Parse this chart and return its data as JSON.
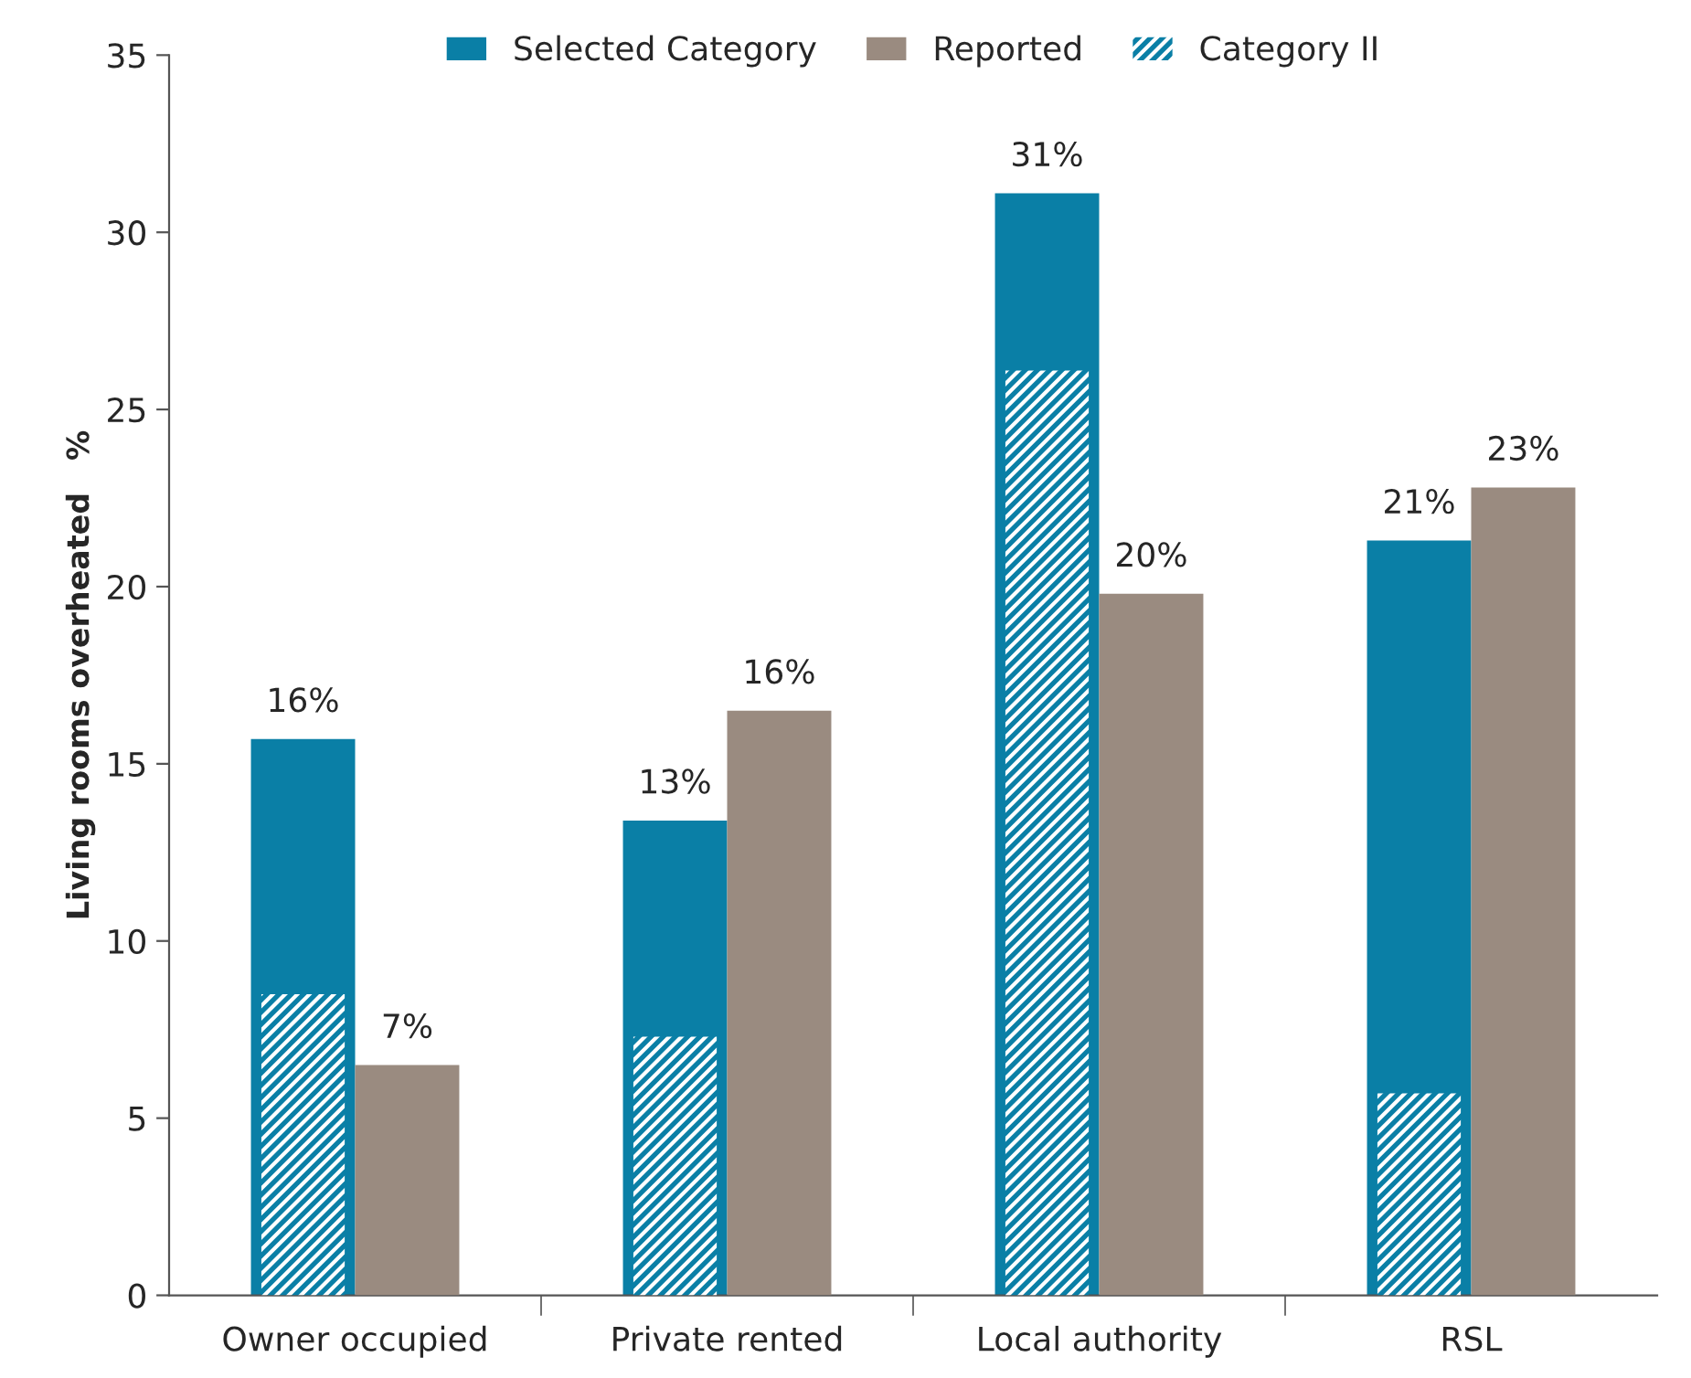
{
  "chart_data": {
    "type": "bar",
    "ylabel": "Living rooms overheated   %",
    "categories": [
      "Owner occupied",
      "Private rented",
      "Local authority",
      "RSL"
    ],
    "series": [
      {
        "name": "Selected Category",
        "color": "#0a7fa6",
        "values": [
          15.7,
          13.4,
          31.1,
          21.3
        ],
        "value_labels": [
          "16%",
          "13%",
          "31%",
          "21%"
        ]
      },
      {
        "name": "Reported",
        "color": "#9a8b80",
        "values": [
          6.5,
          16.5,
          19.8,
          22.8
        ],
        "value_labels": [
          "7%",
          "16%",
          "20%",
          "23%"
        ]
      },
      {
        "name": "Category II",
        "color": "#0a7fa6",
        "values": [
          8.5,
          7.3,
          26.1,
          5.7
        ]
      }
    ],
    "ylim": [
      0,
      35
    ],
    "yticks": [
      0,
      5,
      10,
      15,
      20,
      25,
      30,
      35
    ],
    "grid": false,
    "legend": "top"
  }
}
